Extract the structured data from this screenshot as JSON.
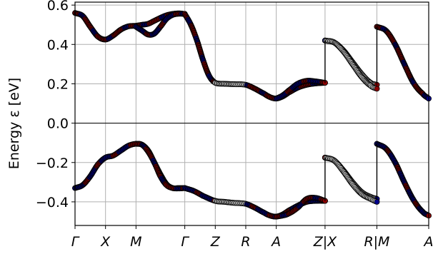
{
  "chart_data": {
    "type": "scatter",
    "ylabel": "Energy ε [eV]",
    "ylim": [
      -0.52,
      0.615
    ],
    "y_ticks": [
      "0.6",
      "0.4",
      "0.2",
      "0.0",
      "−0.2",
      "−0.4"
    ],
    "y_tick_values": [
      0.6,
      0.4,
      0.2,
      0.0,
      -0.2,
      -0.4
    ],
    "x_ticks": [
      "Γ",
      "X",
      "M",
      "Γ",
      "Z",
      "R",
      "A",
      "Z|X",
      "R|M",
      "A"
    ],
    "x_tick_positions": [
      0,
      1,
      2,
      3.6,
      4.6,
      5.6,
      6.6,
      8.2,
      9.9,
      11.6
    ],
    "grid": true,
    "colors": {
      "up": "#8b0000",
      "down": "#00008b",
      "outline": "#000000",
      "neutral_fill": "#ffffff",
      "axis": "#000000",
      "grid": "#b0b0b0"
    },
    "series": [
      {
        "x": [
          0,
          0.25,
          0.5,
          0.75,
          1,
          1.25,
          1.5,
          1.75,
          2,
          2.2,
          2.4,
          2.6,
          2.8,
          3.0,
          3.2,
          3.4,
          3.6
        ],
        "y": [
          0.56,
          0.545,
          0.49,
          0.44,
          0.425,
          0.445,
          0.475,
          0.492,
          0.495,
          0.5,
          0.505,
          0.52,
          0.535,
          0.548,
          0.555,
          0.558,
          0.555
        ]
      },
      {
        "x": [
          2,
          2.2,
          2.4,
          2.6,
          2.8,
          3.0,
          3.2,
          3.4,
          3.6
        ],
        "y": [
          0.49,
          0.47,
          0.45,
          0.455,
          0.49,
          0.53,
          0.55,
          0.556,
          0.555
        ]
      },
      {
        "x": [
          3.6,
          3.8,
          4.0,
          4.2,
          4.4,
          4.6,
          4.9,
          5.2,
          5.6,
          5.9,
          6.2,
          6.4,
          6.6,
          6.8,
          7.0,
          7.3,
          7.6,
          7.9,
          8.2
        ],
        "y": [
          0.555,
          0.5,
          0.42,
          0.32,
          0.24,
          0.205,
          0.2,
          0.198,
          0.195,
          0.175,
          0.15,
          0.132,
          0.125,
          0.135,
          0.155,
          0.18,
          0.195,
          0.202,
          0.205
        ]
      },
      {
        "x": [
          6.6,
          6.8,
          7.0,
          7.3,
          7.6,
          7.9,
          8.2
        ],
        "y": [
          0.125,
          0.14,
          0.165,
          0.2,
          0.215,
          0.212,
          0.205
        ]
      },
      {
        "x": [
          8.2,
          8.5,
          8.8,
          9.1,
          9.4,
          9.7,
          9.9
        ],
        "y": [
          0.42,
          0.41,
          0.37,
          0.31,
          0.25,
          0.205,
          0.195
        ]
      },
      {
        "x": [
          8.2,
          8.5,
          8.8,
          9.1,
          9.4,
          9.7,
          9.9
        ],
        "y": [
          0.42,
          0.41,
          0.365,
          0.3,
          0.235,
          0.19,
          0.175
        ]
      },
      {
        "x": [
          9.9,
          10.2,
          10.5,
          10.8,
          11.1,
          11.4,
          11.6
        ],
        "y": [
          0.49,
          0.47,
          0.4,
          0.3,
          0.205,
          0.15,
          0.125
        ]
      },
      {
        "x": [
          0,
          0.25,
          0.5,
          0.75,
          1,
          1.25,
          1.5,
          1.75,
          2,
          2.2,
          2.4,
          2.6,
          2.8,
          3.0,
          3.2,
          3.4,
          3.6
        ],
        "y": [
          -0.33,
          -0.315,
          -0.27,
          -0.21,
          -0.175,
          -0.165,
          -0.14,
          -0.115,
          -0.105,
          -0.11,
          -0.14,
          -0.2,
          -0.26,
          -0.31,
          -0.33,
          -0.33,
          -0.33
        ]
      },
      {
        "x": [
          2,
          2.2,
          2.4,
          2.6,
          2.8,
          3.0,
          3.2,
          3.4,
          3.6
        ],
        "y": [
          -0.105,
          -0.11,
          -0.145,
          -0.2,
          -0.27,
          -0.315,
          -0.33,
          -0.332,
          -0.33
        ]
      },
      {
        "x": [
          3.6,
          3.9,
          4.2,
          4.6,
          4.9,
          5.2,
          5.6,
          5.9,
          6.2,
          6.4,
          6.6,
          6.8,
          7.0,
          7.3,
          7.6,
          7.9,
          8.2
        ],
        "y": [
          -0.33,
          -0.345,
          -0.37,
          -0.395,
          -0.4,
          -0.405,
          -0.41,
          -0.43,
          -0.455,
          -0.47,
          -0.475,
          -0.465,
          -0.445,
          -0.42,
          -0.4,
          -0.395,
          -0.395
        ]
      },
      {
        "x": [
          6.6,
          6.8,
          7.0,
          7.3,
          7.6,
          7.9,
          8.2
        ],
        "y": [
          -0.475,
          -0.47,
          -0.46,
          -0.43,
          -0.385,
          -0.38,
          -0.395
        ]
      },
      {
        "x": [
          8.2,
          8.5,
          8.8,
          9.1,
          9.4,
          9.7,
          9.9
        ],
        "y": [
          -0.175,
          -0.19,
          -0.24,
          -0.3,
          -0.35,
          -0.375,
          -0.385
        ]
      },
      {
        "x": [
          8.2,
          8.5,
          8.8,
          9.1,
          9.4,
          9.7,
          9.9
        ],
        "y": [
          -0.175,
          -0.19,
          -0.245,
          -0.31,
          -0.36,
          -0.385,
          -0.4
        ]
      },
      {
        "x": [
          9.9,
          10.2,
          10.5,
          10.8,
          11.1,
          11.4,
          11.6
        ],
        "y": [
          -0.105,
          -0.13,
          -0.2,
          -0.3,
          -0.39,
          -0.45,
          -0.47
        ]
      }
    ]
  }
}
